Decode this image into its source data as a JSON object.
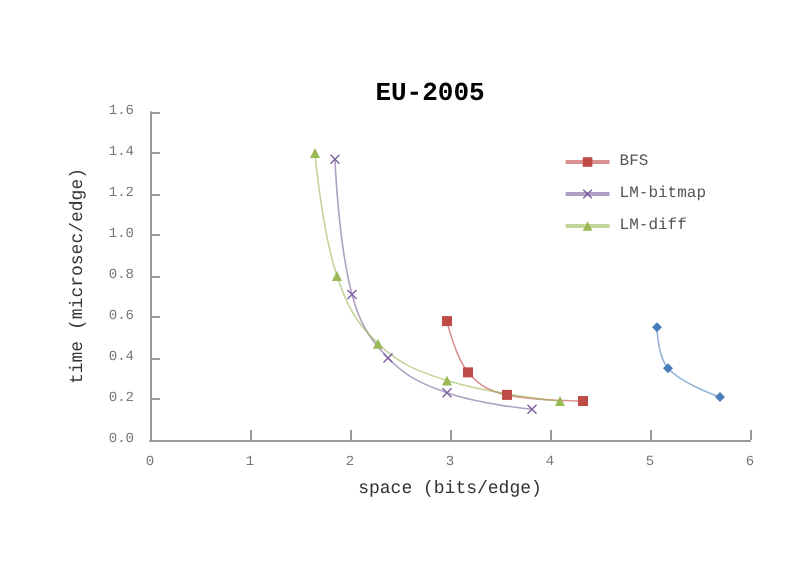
{
  "chart_data": {
    "type": "line",
    "title": "EU-2005",
    "xlabel": "space (bits/edge)",
    "ylabel": "time (microsec/edge)",
    "xlim": [
      0,
      6
    ],
    "xticks": [
      0,
      1,
      2,
      3,
      4,
      5,
      6
    ],
    "ylim": [
      0,
      1.6
    ],
    "yticks": [
      {
        "value": 0,
        "label": "0.0"
      },
      0.2,
      0.4,
      0.6,
      0.8,
      {
        "value": 1,
        "label": "1.0"
      },
      1.2,
      1.4,
      1.6
    ],
    "grid": false,
    "legend": "top right",
    "series": [
      {
        "color": "#4a7ebb",
        "marker": "diamond",
        "x": [
          5.07,
          5.18,
          5.7
        ],
        "values": [
          0.55,
          0.35,
          0.21
        ]
      },
      {
        "name": "BFS",
        "color": "#be4b48",
        "marker": "square",
        "x": [
          2.97,
          3.18,
          3.57,
          4.33
        ],
        "values": [
          0.58,
          0.33,
          0.22,
          0.19
        ]
      },
      {
        "name": "LM-bitmap",
        "color": "#7d60a0",
        "marker": "cross",
        "x": [
          1.85,
          2.02,
          2.38,
          2.97,
          3.82
        ],
        "values": [
          1.37,
          0.71,
          0.4,
          0.23,
          0.15
        ]
      },
      {
        "name": "LM-diff",
        "color": "#98b954",
        "marker": "triangle",
        "x": [
          1.65,
          1.87,
          2.28,
          2.97,
          4.1
        ],
        "values": [
          1.4,
          0.8,
          0.47,
          0.29,
          0.19
        ]
      }
    ]
  }
}
